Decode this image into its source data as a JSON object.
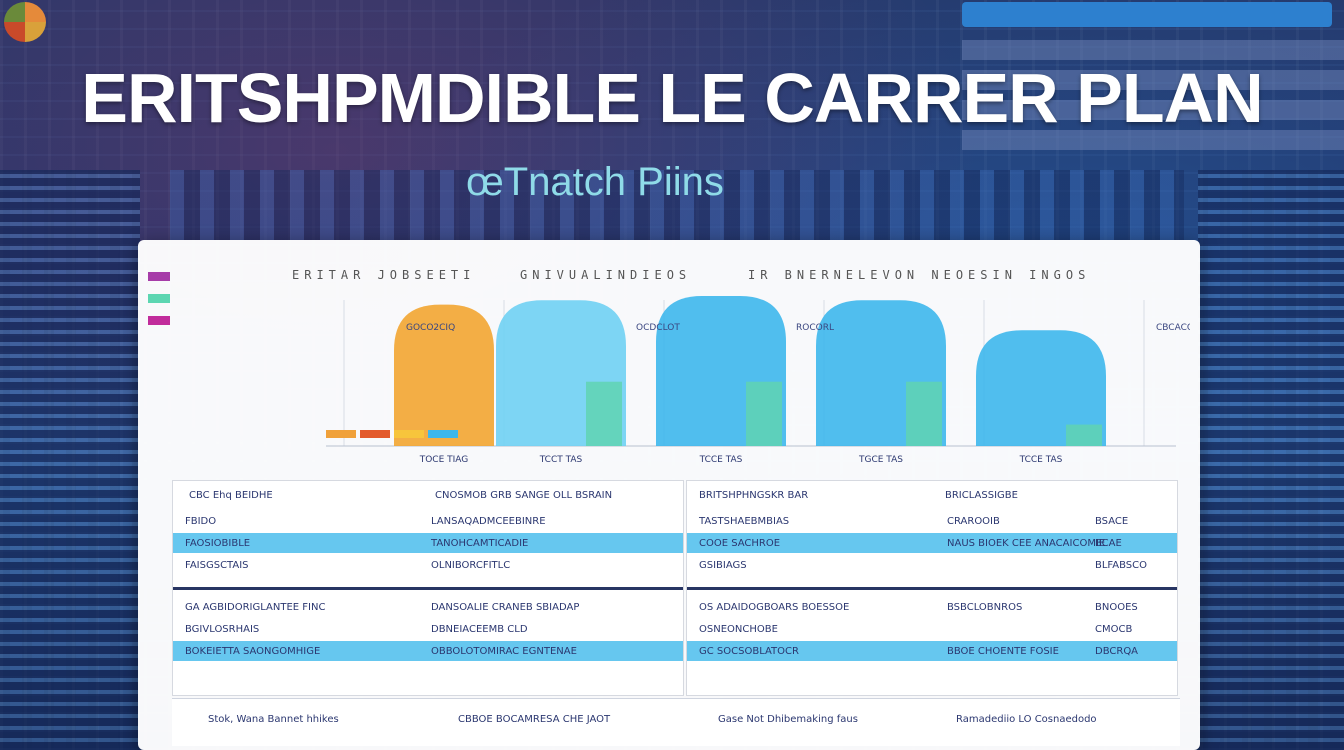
{
  "title": "ERITSHPMDIBLE LE CARRER PLAN",
  "subtitle": "œTnatch Piins",
  "colors": {
    "background": "#22356b",
    "panel": "#ffffff",
    "orange": "#f2a531",
    "sky": "#6fd0f3",
    "deep_sky": "#3db7ec",
    "teal": "#5fd4b2",
    "highlight_row": "#66c7ef",
    "dark_band": "#283563"
  },
  "legend": [
    {
      "color": "#a63ca8",
      "label": ""
    },
    {
      "color": "#5cd6b1",
      "label": ""
    },
    {
      "color": "#c12c9b",
      "label": ""
    }
  ],
  "chart_headers": [
    "ERITAR JOBSEETI",
    "GNIVUALINDIEOS",
    "IR BNERNELEVON NEOESIN INGOS"
  ],
  "chart_data": {
    "type": "bar",
    "categories": [
      "TOCE TIAG",
      "TCCT TAS",
      "TCCE TAS",
      "TGCE TAS",
      "TCCE TAS"
    ],
    "series": [
      {
        "values": [
          66,
          68,
          70,
          68,
          54
        ]
      },
      {
        "values": [
          0,
          30,
          30,
          30,
          10
        ]
      }
    ],
    "annotations": [
      "GOCO2CIQ",
      "OCDCLOT",
      "ROCORL",
      "CBCACOOSFA"
    ]
  },
  "left_table": {
    "top_headers": [
      "CBC  Ehq  BEIDHE",
      "CNOSMOB GRB SANGE  OLL BSRAIN"
    ],
    "rows": [
      {
        "c1": "FBIDO",
        "c2": "LANSAQADMCEEBINRE"
      },
      {
        "c1": "FAOSIOBIBLE",
        "c2": "TANOHCAMTICADIE",
        "hl": true
      },
      {
        "c1": "FAISGSCTAIS",
        "c2": "OLNIBORCFITLC"
      },
      {
        "c1": "GA AGBIDORIGLANTEE FINC",
        "c2": "DANSOALIE  CRANEB  SBIADAP"
      },
      {
        "c1": "BGIVLOSRHAIS",
        "c2": "DBNEIACEEMB CLD"
      },
      {
        "c1": "BOKEIETTA SAONGOMHIGE",
        "c2": "OBBOLOTOMIRAC EGNTENAE",
        "hl": true
      }
    ]
  },
  "right_table": {
    "top_headers": [
      "BRITSHPHNGSKR BAR",
      "BRICLASSIGBE"
    ],
    "rows": [
      {
        "c1": "TASTSHAEBMBIAS",
        "c2": "CRAROOIB",
        "c3": "BSACE"
      },
      {
        "c1": "COOE SACHROE",
        "c2": "NAUS BIOEK CEE ANACAICOMIE",
        "c3": "BCAE",
        "hl": true
      },
      {
        "c1": "GSIBIAGS",
        "c2": "",
        "c3": "BLFABSCO"
      },
      {
        "c1": "OS ADAIDOGBOARS BOESSOE",
        "c2": "BSBCLOBNROS",
        "c3": "BNOOES"
      },
      {
        "c1": "OSNEONCHOBE",
        "c2": "",
        "c3": "CMOCB"
      },
      {
        "c1": "GC SOCSOBLATOCR",
        "c2": "BBOE CHOENTE FOSIE",
        "c3": "DBCRQA",
        "hl": true
      }
    ]
  },
  "bottom_row": {
    "left_a": "Stok, Wana Bannet hhikes",
    "left_b": "CBBOE BOCAMRESA CHE JAOT",
    "right_a": "Gase Not Dhibemaking faus",
    "right_b": "Ramadediio LO Cosnaedodo"
  }
}
